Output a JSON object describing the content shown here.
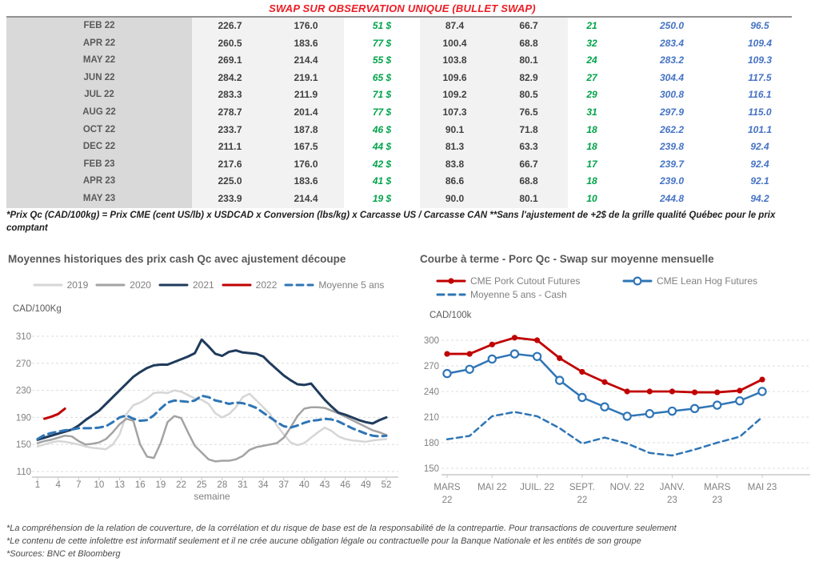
{
  "page_title": "SWAP SUR OBSERVATION UNIQUE (BULLET SWAP)",
  "table": {
    "rows": [
      [
        "FEB 22",
        "226.7",
        "176.0",
        "51 $",
        "87.4",
        "66.7",
        "21",
        "250.0",
        "96.5"
      ],
      [
        "APR 22",
        "260.5",
        "183.6",
        "77 $",
        "100.4",
        "68.8",
        "32",
        "283.4",
        "109.4"
      ],
      [
        "MAY 22",
        "269.1",
        "214.4",
        "55 $",
        "103.8",
        "80.1",
        "24",
        "283.2",
        "109.3"
      ],
      [
        "JUN 22",
        "284.2",
        "219.1",
        "65 $",
        "109.6",
        "82.9",
        "27",
        "304.4",
        "117.5"
      ],
      [
        "JUL 22",
        "283.3",
        "211.9",
        "71 $",
        "109.2",
        "80.5",
        "29",
        "300.8",
        "116.1"
      ],
      [
        "AUG 22",
        "278.7",
        "201.4",
        "77 $",
        "107.3",
        "76.5",
        "31",
        "297.9",
        "115.0"
      ],
      [
        "OCT 22",
        "233.7",
        "187.8",
        "46 $",
        "90.1",
        "71.8",
        "18",
        "262.2",
        "101.1"
      ],
      [
        "DEC 22",
        "211.1",
        "167.5",
        "44 $",
        "81.3",
        "63.3",
        "18",
        "239.8",
        "92.4"
      ],
      [
        "FEB 23",
        "217.6",
        "176.0",
        "42 $",
        "83.8",
        "66.7",
        "17",
        "239.7",
        "92.4"
      ],
      [
        "APR 23",
        "225.0",
        "183.6",
        "41 $",
        "86.6",
        "68.8",
        "18",
        "239.0",
        "92.1"
      ],
      [
        "MAY 23",
        "233.9",
        "214.4",
        "19 $",
        "90.0",
        "80.1",
        "10",
        "244.8",
        "94.2"
      ]
    ]
  },
  "table_footnote": "*Prix Qc (CAD/100kg) = Prix CME (cent US/lb) x USDCAD x Conversion (lbs/kg) x Carcasse US / Carcasse CAN **Sans l'ajustement de +2$ de la grille qualité Québec pour le prix comptant",
  "chart_data": [
    {
      "type": "line",
      "title": "Moyennes historiques des prix cash Qc avec ajustement découpe",
      "ylabel": "CAD/100Kg",
      "xlabel": "semaine",
      "x_range": [
        1,
        52
      ],
      "xticks": [
        1,
        4,
        7,
        10,
        13,
        16,
        19,
        22,
        25,
        28,
        31,
        34,
        37,
        40,
        43,
        46,
        49,
        52
      ],
      "yticks": [
        110,
        150,
        190,
        230,
        270,
        310
      ],
      "ylim": [
        110,
        310
      ],
      "grid": "dashed-horizontal",
      "legend_position": "top-center",
      "series": [
        {
          "name": "2019",
          "color": "#d6d6d6",
          "width": 2.5,
          "values": [
            147,
            150,
            153,
            155,
            154,
            152,
            150,
            147,
            145,
            144,
            143,
            150,
            165,
            195,
            208,
            212,
            218,
            226,
            227,
            226,
            230,
            228,
            223,
            218,
            216,
            210,
            196,
            190,
            195,
            205,
            220,
            225,
            215,
            205,
            195,
            178,
            165,
            153,
            149,
            152,
            160,
            168,
            175,
            170,
            162,
            158,
            156,
            155,
            154,
            156,
            157,
            158
          ]
        },
        {
          "name": "2020",
          "color": "#a3a3a3",
          "width": 2.5,
          "values": [
            152,
            155,
            157,
            160,
            163,
            162,
            155,
            150,
            151,
            153,
            158,
            168,
            180,
            188,
            185,
            150,
            132,
            130,
            152,
            183,
            192,
            189,
            168,
            148,
            138,
            128,
            125,
            126,
            126,
            128,
            133,
            142,
            146,
            148,
            150,
            152,
            160,
            175,
            192,
            203,
            205,
            205,
            204,
            200,
            196,
            191,
            186,
            181,
            176,
            171,
            168,
            164
          ]
        },
        {
          "name": "2021",
          "color": "#1f3b5c",
          "width": 3,
          "values": [
            157,
            160,
            163,
            166,
            169,
            172,
            178,
            186,
            193,
            200,
            210,
            220,
            230,
            240,
            250,
            257,
            263,
            267,
            268,
            268,
            272,
            276,
            280,
            285,
            305,
            295,
            284,
            281,
            287,
            289,
            286,
            285,
            284,
            280,
            270,
            261,
            252,
            245,
            239,
            238,
            240,
            228,
            216,
            206,
            197,
            194,
            190,
            186,
            183,
            181,
            186,
            190
          ]
        },
        {
          "name": "2022",
          "color": "#c00000",
          "width": 3,
          "x": [
            2,
            3,
            4,
            5
          ],
          "values": [
            188,
            191,
            195,
            203
          ]
        },
        {
          "name": "Moyenne 5 ans",
          "color": "#2e75b6",
          "width": 3,
          "dash": "9 6",
          "values": [
            158,
            164,
            167,
            169,
            171,
            172,
            174,
            174,
            174,
            175,
            177,
            183,
            190,
            193,
            188,
            185,
            186,
            193,
            203,
            212,
            215,
            214,
            213,
            215,
            222,
            220,
            215,
            213,
            210,
            212,
            211,
            208,
            204,
            197,
            190,
            183,
            177,
            175,
            178,
            182,
            185,
            186,
            188,
            187,
            184,
            179,
            174,
            170,
            166,
            163,
            162,
            163
          ]
        }
      ]
    },
    {
      "type": "line",
      "title": "Courbe à terme - Porc Qc - Swap sur moyenne mensuelle",
      "ylabel": "CAD/100k",
      "xlabel": "",
      "n_points": 15,
      "xtick_indices": [
        0,
        2,
        4,
        6,
        8,
        10,
        12,
        14
      ],
      "xtick_labels": [
        [
          "MARS",
          "22"
        ],
        [
          "MAI 22"
        ],
        [
          "JUIL. 22"
        ],
        [
          "SEPT.",
          "22"
        ],
        [
          "NOV. 22"
        ],
        [
          "JANV.",
          "23"
        ],
        [
          "MARS",
          "23"
        ],
        [
          "MAI 23"
        ]
      ],
      "yticks": [
        150,
        180,
        210,
        240,
        270,
        300
      ],
      "ylim": [
        150,
        300
      ],
      "grid": "dashed-horizontal",
      "legend_position": "top-left",
      "series": [
        {
          "name": "CME Pork Cutout Futures",
          "color": "#c00000",
          "width": 2.8,
          "marker": "filled-circle",
          "values": [
            284,
            284,
            295,
            303,
            300,
            279,
            263,
            251,
            240,
            240,
            240,
            239,
            239,
            241,
            254
          ]
        },
        {
          "name": "CME Lean Hog Futures",
          "color": "#2e75b6",
          "width": 2.5,
          "marker": "open-circle",
          "values": [
            261,
            266,
            278,
            284,
            281,
            253,
            233,
            222,
            211,
            214,
            217,
            220,
            224,
            229,
            240
          ]
        },
        {
          "name": "Moyenne 5 ans - Cash",
          "color": "#2e75b6",
          "width": 2.5,
          "dash": "7 5",
          "values": [
            184,
            188,
            211,
            216,
            211,
            197,
            179,
            186,
            179,
            168,
            165,
            172,
            180,
            187,
            210
          ]
        }
      ]
    }
  ],
  "footnotes": [
    "*La compréhension de la relation de couverture, de la corrélation et du risque de base est de la responsabilité de la contrepartie. Pour transactions de couverture seulement",
    "*Le contenu de cette infolettre est informatif seulement et il ne crée aucune obligation légale ou contractuelle pour la Banque Nationale et les entités de son groupe",
    "*Sources: BNC et Bloomberg"
  ],
  "colors": {
    "title_red": "#ed1c24",
    "table_green": "#00a34a",
    "table_blue": "#4472c4",
    "navy_2021": "#1f3b5c",
    "chart_red": "#c00000",
    "steel_blue": "#2e75b6",
    "gray_2020": "#a3a3a3",
    "light_2019": "#d6d6d6",
    "grid_line": "#dcdcdc",
    "axis_text": "#808080",
    "heading_gray": "#595959"
  }
}
